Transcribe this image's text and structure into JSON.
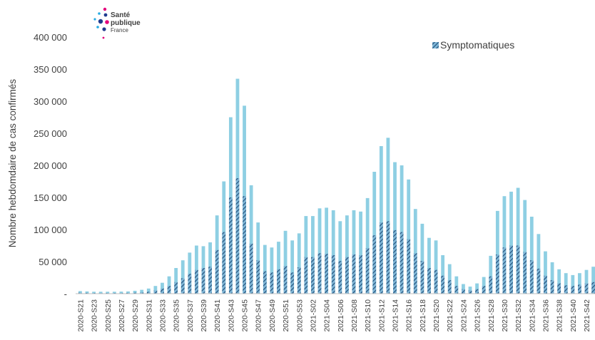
{
  "logo": {
    "line1": "Santé",
    "line2": "publique",
    "line3": "France",
    "colors": [
      "#1f3b8f",
      "#e4007c",
      "#29abe2"
    ]
  },
  "chart_data": {
    "type": "bar",
    "title": "",
    "xlabel": "",
    "ylabel": "Nombre hebdomdaire de cas confirmés",
    "ylim": [
      0,
      400000
    ],
    "yticks": [
      0,
      50000,
      100000,
      150000,
      200000,
      250000,
      300000,
      350000,
      400000
    ],
    "ytick_labels": [
      "-",
      "50 000",
      "100 000",
      "150 000",
      "200 000",
      "250 000",
      "300 000",
      "350 000",
      "400 000"
    ],
    "legend": {
      "position": "top-right",
      "label": "Symptomatiques"
    },
    "colors": {
      "total": "#8ecfe3",
      "symptomatic": "#1f4e79",
      "hatch_light": "#7fb6d6",
      "axis": "#bfbfbf"
    },
    "categories": [
      "2020-S21",
      "2020-S22",
      "2020-S23",
      "2020-S24",
      "2020-S25",
      "2020-S26",
      "2020-S27",
      "2020-S28",
      "2020-S29",
      "2020-S30",
      "2020-S31",
      "2020-S32",
      "2020-S33",
      "2020-S34",
      "2020-S35",
      "2020-S36",
      "2020-S37",
      "2020-S38",
      "2020-S39",
      "2020-S40",
      "2020-S41",
      "2020-S42",
      "2020-S43",
      "2020-S44",
      "2020-S45",
      "2020-S46",
      "2020-S47",
      "2020-S48",
      "2020-S49",
      "2020-S50",
      "2020-S51",
      "2020-S52",
      "2020-S53",
      "2021-S01",
      "2021-S02",
      "2021-S03",
      "2021-S04",
      "2021-S05",
      "2021-S06",
      "2021-S07",
      "2021-S08",
      "2021-S09",
      "2021-S10",
      "2021-S11",
      "2021-S12",
      "2021-S13",
      "2021-S14",
      "2021-S15",
      "2021-S16",
      "2021-S17",
      "2021-S18",
      "2021-S19",
      "2021-S20",
      "2021-S21",
      "2021-S22",
      "2021-S23",
      "2021-S24",
      "2021-S25",
      "2021-S26",
      "2021-S27",
      "2021-S28",
      "2021-S29",
      "2021-S30",
      "2021-S31",
      "2021-S32",
      "2021-S33",
      "2021-S34",
      "2021-S35",
      "2021-S36",
      "2021-S37",
      "2021-S38",
      "2021-S39",
      "2021-S40",
      "2021-S41",
      "2021-S42",
      "2021-S43"
    ],
    "x_tick_labels": [
      "2020-S21",
      "2020-S23",
      "2020-S25",
      "2020-S27",
      "2020-S29",
      "2020-S31",
      "2020-S33",
      "2020-S35",
      "2020-S37",
      "2020-S39",
      "2020-S41",
      "2020-S43",
      "2020-S45",
      "2020-S47",
      "2020-S49",
      "2020-S51",
      "2020-S53",
      "2021-S02",
      "2021-S04",
      "2021-S06",
      "2021-S08",
      "2021-S10",
      "2021-S12",
      "2021-S14",
      "2021-S16",
      "2021-S18",
      "2021-S20",
      "2021-S22",
      "2021-S24",
      "2021-S26",
      "2021-S28",
      "2021-S30",
      "2021-S32",
      "2021-S34",
      "2021-S36",
      "2021-S38",
      "2021-S40",
      "2021-S42"
    ],
    "series": [
      {
        "values": [
          4000,
          3500,
          3000,
          3000,
          3000,
          3000,
          3200,
          3500,
          4500,
          6000,
          8000,
          12000,
          17000,
          27000,
          40000,
          52000,
          64000,
          75000,
          74000,
          80000,
          122000,
          175000,
          275000,
          335000,
          293000,
          169000,
          111000,
          76000,
          72000,
          81000,
          98000,
          83000,
          94000,
          121000,
          121000,
          133000,
          134000,
          130000,
          113000,
          122000,
          130000,
          128000,
          149000,
          190000,
          230000,
          243000,
          205000,
          200000,
          178000,
          132000,
          109000,
          87000,
          83000,
          60000,
          46000,
          27000,
          15000,
          11000,
          16000,
          26000,
          59000,
          129000,
          152000,
          159000,
          165000,
          146000,
          120000,
          93000,
          66000,
          49000,
          38000,
          32000,
          29000,
          32000,
          37000,
          42000
        ]
      },
      {
        "name": "Symptomatiques",
        "values": [
          1500,
          1200,
          1000,
          1000,
          1000,
          1000,
          1100,
          1200,
          1500,
          2000,
          3000,
          5000,
          8000,
          12000,
          18000,
          24000,
          31000,
          37000,
          40000,
          42000,
          68000,
          96000,
          150000,
          180000,
          152000,
          78000,
          52000,
          35000,
          33000,
          38000,
          43000,
          33000,
          41000,
          57000,
          57000,
          63000,
          62000,
          60000,
          51000,
          57000,
          61000,
          60000,
          71000,
          91000,
          111000,
          113000,
          99000,
          96000,
          85000,
          63000,
          51000,
          40000,
          37000,
          28000,
          21000,
          12000,
          7000,
          5000,
          7000,
          12000,
          27000,
          61000,
          72000,
          75000,
          75000,
          65000,
          52000,
          39000,
          28000,
          21000,
          16000,
          13000,
          12000,
          14000,
          16000,
          18000
        ]
      }
    ]
  }
}
